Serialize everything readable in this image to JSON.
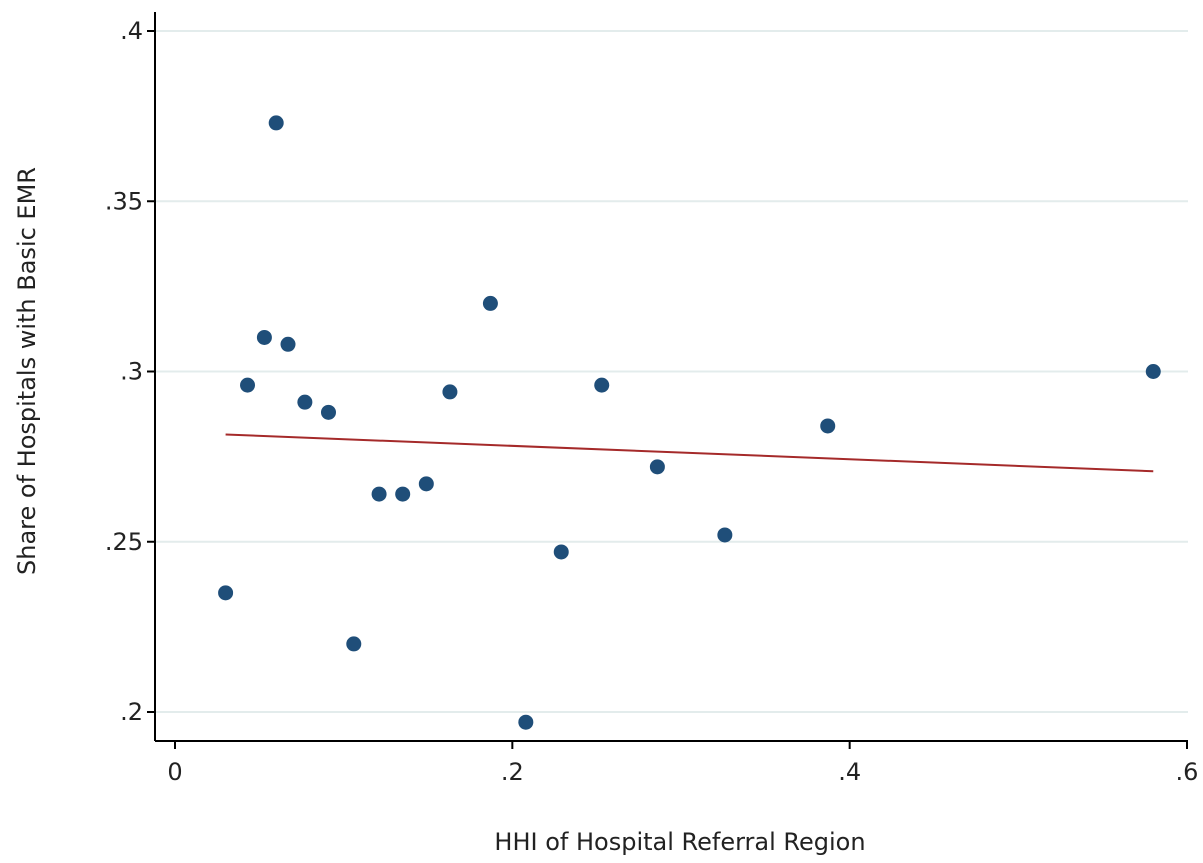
{
  "chart_data": {
    "type": "scatter",
    "xlabel": "HHI of Hospital Referral Region",
    "ylabel": "Share of Hospitals with Basic EMR",
    "xlim": [
      0,
      0.6
    ],
    "ylim": [
      0.2,
      0.4
    ],
    "x_ticks": [
      0,
      0.2,
      0.4,
      0.6
    ],
    "x_tick_labels": [
      "0",
      ".2",
      ".4",
      ".6"
    ],
    "y_ticks": [
      0.2,
      0.25,
      0.3,
      0.35,
      0.4
    ],
    "y_tick_labels": [
      ".2",
      ".25",
      ".3",
      ".35",
      ".4"
    ],
    "grid": "horizontal",
    "series": [
      {
        "type": "scatter",
        "color": "#1f4e79",
        "points": [
          {
            "x": 0.03,
            "y": 0.235
          },
          {
            "x": 0.043,
            "y": 0.296
          },
          {
            "x": 0.053,
            "y": 0.31
          },
          {
            "x": 0.06,
            "y": 0.373
          },
          {
            "x": 0.067,
            "y": 0.308
          },
          {
            "x": 0.077,
            "y": 0.291
          },
          {
            "x": 0.091,
            "y": 0.288
          },
          {
            "x": 0.106,
            "y": 0.22
          },
          {
            "x": 0.121,
            "y": 0.264
          },
          {
            "x": 0.135,
            "y": 0.264
          },
          {
            "x": 0.149,
            "y": 0.267
          },
          {
            "x": 0.163,
            "y": 0.294
          },
          {
            "x": 0.187,
            "y": 0.32
          },
          {
            "x": 0.208,
            "y": 0.197
          },
          {
            "x": 0.229,
            "y": 0.247
          },
          {
            "x": 0.253,
            "y": 0.296
          },
          {
            "x": 0.286,
            "y": 0.272
          },
          {
            "x": 0.326,
            "y": 0.252
          },
          {
            "x": 0.387,
            "y": 0.284
          },
          {
            "x": 0.58,
            "y": 0.3
          }
        ]
      },
      {
        "type": "line",
        "color": "#a52a2a",
        "points": [
          {
            "x": 0.03,
            "y": 0.2815
          },
          {
            "x": 0.58,
            "y": 0.2707
          }
        ]
      }
    ]
  }
}
